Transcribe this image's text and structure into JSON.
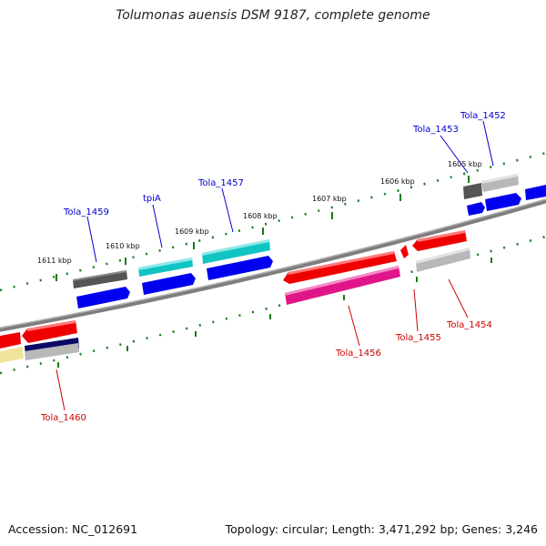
{
  "title": "Tolumonas auensis DSM 9187, complete genome",
  "accession_label": "Accession: NC_012691",
  "summary_label": "Topology: circular; Length: 3,471,292 bp; Genes: 3,246",
  "colors": {
    "backbone": "#8a8a8a",
    "tick": "#1a7a1a",
    "label_forward": "#0000cc",
    "label_reverse": "#cc0000",
    "cds": "#0000ee",
    "gene_dark_gray": "#555555",
    "gene_light_gray": "#b8b8b8",
    "gene_cyan": "#11c4c4",
    "gene_red": "#ee0000",
    "gene_magenta": "#e0158a",
    "gene_navy": "#0a0a6a",
    "gene_khaki": "#efe49a"
  },
  "scale_labels": [
    "1611 kbp",
    "1610 kbp",
    "1609 kbp",
    "1608 kbp",
    "1607 kbp",
    "1606 kbp",
    "1605 kbp"
  ],
  "gene_labels_forward": [
    "Tola_1459",
    "tpiA",
    "Tola_1457",
    "Tola_1453",
    "Tola_1452"
  ],
  "gene_labels_reverse": [
    "Tola_1456",
    "Tola_1455",
    "Tola_1454",
    "Tola_1460"
  ]
}
